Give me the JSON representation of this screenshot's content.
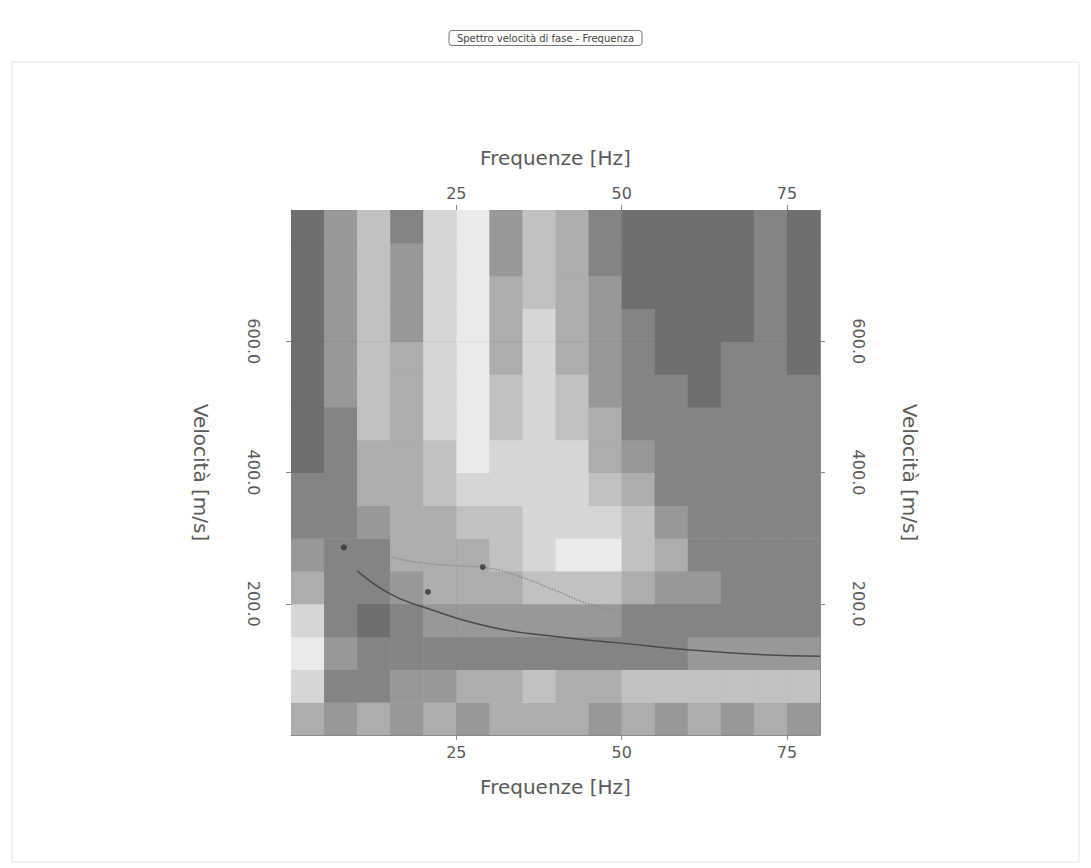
{
  "chart_data": {
    "type": "heatmap",
    "title": "Spettro velocità di fase - Frequenza",
    "x_label": "Frequenze [Hz]",
    "y_label": "Velocità [m/s]",
    "xlim": [
      0,
      80
    ],
    "xticks": [
      25,
      50,
      75
    ],
    "ylim": [
      0,
      800
    ],
    "yticks": [
      {
        "value": 200,
        "label": "200.0"
      },
      {
        "value": 400,
        "label": "400.0"
      },
      {
        "value": 600,
        "label": "600.0"
      }
    ],
    "grid": true,
    "cells": {
      "x_edges": [
        0,
        5,
        10,
        15,
        20,
        25,
        30,
        35,
        40,
        45,
        50,
        55,
        60,
        65,
        70,
        75,
        80
      ],
      "y_edges": [
        0,
        50,
        100,
        150,
        200,
        250,
        300,
        350,
        400,
        450,
        500,
        550,
        600,
        650,
        700,
        750,
        800
      ],
      "values": [
        [
          5,
          4,
          5,
          4,
          5,
          4,
          5,
          5,
          5,
          4,
          5,
          4,
          5,
          4,
          5,
          4
        ],
        [
          7,
          3,
          3,
          4,
          4,
          5,
          5,
          6,
          5,
          5,
          6,
          6,
          6,
          6,
          6,
          6
        ],
        [
          8,
          4,
          3,
          3,
          3,
          3,
          3,
          3,
          3,
          3,
          3,
          3,
          4,
          4,
          4,
          4
        ],
        [
          7,
          3,
          2,
          3,
          4,
          4,
          4,
          4,
          4,
          4,
          3,
          3,
          3,
          3,
          3,
          3
        ],
        [
          5,
          3,
          3,
          4,
          5,
          5,
          5,
          6,
          6,
          6,
          5,
          4,
          4,
          3,
          3,
          3
        ],
        [
          4,
          3,
          3,
          5,
          5,
          5,
          6,
          7,
          8,
          8,
          6,
          5,
          3,
          3,
          3,
          3
        ],
        [
          3,
          3,
          4,
          5,
          5,
          6,
          6,
          7,
          7,
          7,
          6,
          4,
          3,
          3,
          3,
          3
        ],
        [
          3,
          3,
          5,
          5,
          6,
          7,
          7,
          7,
          7,
          6,
          5,
          3,
          3,
          3,
          3,
          3
        ],
        [
          2,
          3,
          5,
          5,
          6,
          8,
          7,
          7,
          7,
          5,
          4,
          3,
          3,
          3,
          3,
          3
        ],
        [
          2,
          3,
          6,
          5,
          7,
          8,
          6,
          7,
          6,
          5,
          3,
          3,
          3,
          3,
          3,
          3
        ],
        [
          2,
          4,
          6,
          5,
          7,
          8,
          6,
          7,
          6,
          4,
          3,
          3,
          2,
          3,
          3,
          3
        ],
        [
          2,
          4,
          6,
          5,
          7,
          8,
          5,
          7,
          5,
          4,
          3,
          2,
          2,
          3,
          3,
          2
        ],
        [
          2,
          4,
          6,
          4,
          7,
          8,
          5,
          7,
          5,
          4,
          3,
          2,
          2,
          2,
          3,
          2
        ],
        [
          2,
          4,
          6,
          4,
          7,
          8,
          5,
          6,
          5,
          4,
          2,
          2,
          2,
          2,
          3,
          2
        ],
        [
          2,
          4,
          6,
          4,
          7,
          8,
          4,
          6,
          5,
          3,
          2,
          2,
          2,
          2,
          3,
          2
        ],
        [
          2,
          4,
          6,
          3,
          7,
          8,
          4,
          6,
          5,
          3,
          2,
          2,
          2,
          2,
          3,
          2
        ]
      ]
    },
    "zlim": [
      0,
      9
    ],
    "series": [
      {
        "type": "line",
        "color": "#8c8c8c",
        "line_style": "dotted",
        "x": [
          5,
          10,
          15,
          20,
          25,
          30,
          35,
          40,
          45,
          50
        ],
        "values": [
          320,
          290,
          272,
          262,
          258,
          254,
          240,
          220,
          200,
          188
        ]
      },
      {
        "type": "line",
        "color": "#4a4a4a",
        "line_style": "solid",
        "x": [
          10,
          15,
          20,
          30,
          40,
          50,
          60,
          70,
          80
        ],
        "values": [
          250,
          215,
          195,
          165,
          150,
          140,
          130,
          123,
          120
        ]
      },
      {
        "type": "scatter",
        "color": "#333333",
        "marker": "circle",
        "x": [
          8,
          20.7,
          29
        ],
        "values": [
          286,
          218,
          256
        ]
      }
    ]
  }
}
